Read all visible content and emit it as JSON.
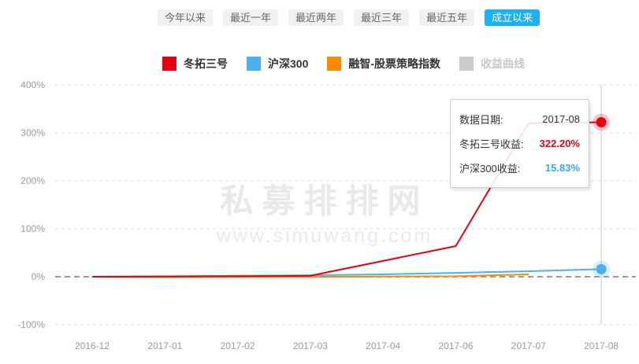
{
  "tabs": [
    {
      "label": "今年以来",
      "active": false
    },
    {
      "label": "最近一年",
      "active": false
    },
    {
      "label": "最近两年",
      "active": false
    },
    {
      "label": "最近三年",
      "active": false
    },
    {
      "label": "最近五年",
      "active": false
    },
    {
      "label": "成立以来",
      "active": true
    }
  ],
  "legend": [
    {
      "label": "冬拓三号",
      "color": "#e60012",
      "enabled": true
    },
    {
      "label": "沪深300",
      "color": "#4cb1e8",
      "enabled": true
    },
    {
      "label": "融智-股票策略指数",
      "color": "#ff8a00",
      "enabled": true
    },
    {
      "label": "收益曲线",
      "color": "#cccccc",
      "enabled": false
    }
  ],
  "watermark": {
    "title": "私募排排网",
    "url": "www.simuwang.com"
  },
  "tooltip": {
    "rows": [
      {
        "label": "数据日期:",
        "value": "2017-08",
        "color": "#333333"
      },
      {
        "label": "冬拓三号收益:",
        "value": "322.20%",
        "color": "#e60012"
      },
      {
        "label": "沪深300收益:",
        "value": "15.83%",
        "color": "#3da8e5"
      }
    ]
  },
  "chart_data": {
    "type": "line",
    "title": "",
    "categories": [
      "2016-12",
      "2017-01",
      "2017-02",
      "2017-03",
      "2017-04",
      "2017-06",
      "2017-07",
      "2017-08"
    ],
    "series": [
      {
        "name": "冬拓三号",
        "color": "#e60012",
        "values": [
          0,
          0.5,
          1,
          2,
          33,
          64,
          320,
          322.2
        ]
      },
      {
        "name": "沪深300",
        "color": "#4cb1e8",
        "values": [
          0,
          1,
          2,
          3,
          5,
          8,
          11.5,
          15.83
        ]
      },
      {
        "name": "融智-股票策略指数",
        "color": "#ff8a00",
        "values": [
          0,
          -1,
          -0.5,
          -0.5,
          0.5,
          1,
          5,
          null
        ]
      }
    ],
    "yticks": [
      400,
      300,
      200,
      100,
      0,
      -100
    ],
    "ylabels": [
      "400%",
      "300%",
      "200%",
      "100%",
      "0%",
      "-100%"
    ],
    "ylim": [
      -100,
      400
    ],
    "grid": true,
    "legend_position": "top",
    "crosshair_category_index": 7,
    "end_markers": [
      {
        "series_index": 0,
        "category_index": 7
      },
      {
        "series_index": 1,
        "category_index": 7
      }
    ]
  }
}
